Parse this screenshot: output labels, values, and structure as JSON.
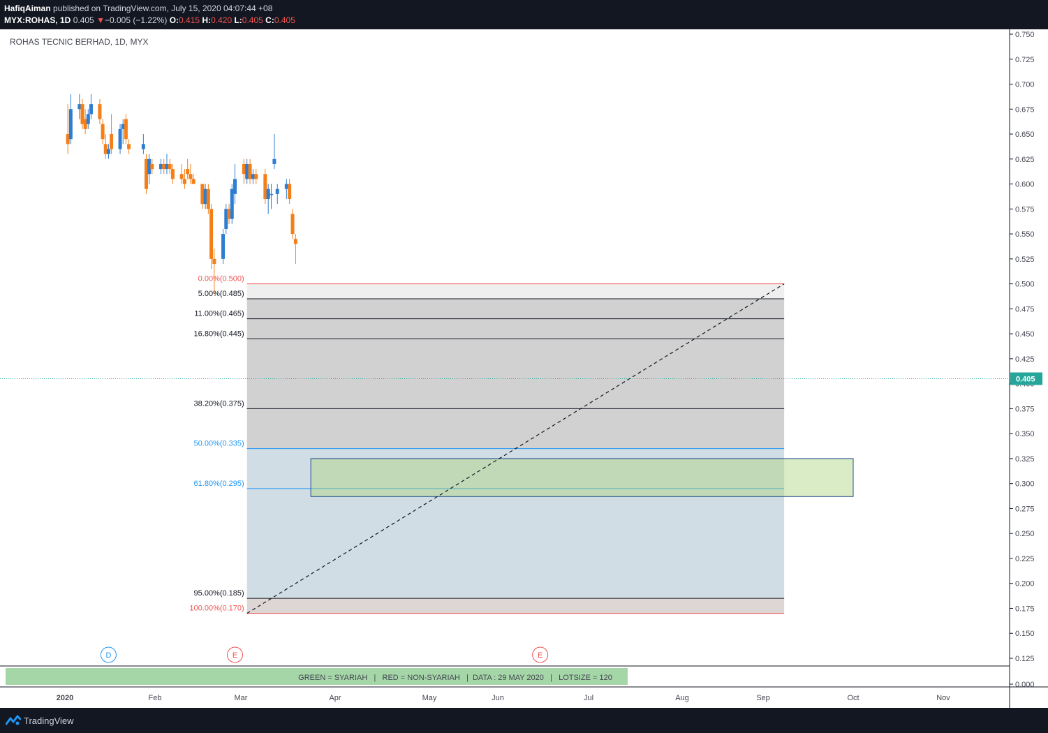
{
  "header": {
    "author": "HafiqAiman",
    "published_text": "published on TradingView.com, July 15, 2020 04:07:44 +08",
    "symbol": "MYX:ROHAS, 1D",
    "last": "0.405",
    "change_arrow": "▼",
    "change": "−0.005 (−1.22%)",
    "o_label": "O:",
    "o_value": "0.415",
    "h_label": "H:",
    "h_value": "0.420",
    "l_label": "L:",
    "l_value": "0.405",
    "c_label": "C:",
    "c_value": "0.405"
  },
  "legend_title": "ROHAS TECNIC BERHAD, 1D, MYX",
  "footer": {
    "brand": "TradingView",
    "logo_icon": "tradingview-logo-icon"
  },
  "colors": {
    "up": "#2e7dd1",
    "down": "#f57f17",
    "fib_red": "#ef5350",
    "fib_blue": "#2196f3",
    "accent": "#26a69a"
  },
  "chart_data": {
    "type": "candlestick",
    "title": "ROHAS TECNIC BERHAD, 1D, MYX",
    "y_ticks": [
      "0.750",
      "0.725",
      "0.700",
      "0.675",
      "0.650",
      "0.625",
      "0.600",
      "0.575",
      "0.550",
      "0.525",
      "0.500",
      "0.475",
      "0.450",
      "0.425",
      "0.400",
      "0.375",
      "0.350",
      "0.325",
      "0.300",
      "0.275",
      "0.250",
      "0.225",
      "0.200",
      "0.175",
      "0.150",
      "0.125",
      "0.000"
    ],
    "x_ticks": [
      "2020",
      "Feb",
      "Mar",
      "Apr",
      "May",
      "Jun",
      "Jul",
      "Aug",
      "Sep",
      "Oct",
      "Nov"
    ],
    "last_price_label": "0.405",
    "event_markers": [
      {
        "letter": "D",
        "kind": "dividend",
        "date": "2020-01-16"
      },
      {
        "letter": "E",
        "kind": "earnings",
        "date": "2020-02-28"
      },
      {
        "letter": "E",
        "kind": "earnings",
        "date": "2020-06-15"
      }
    ],
    "fib_levels": [
      {
        "label": "0.00%(0.500)",
        "price": 0.5,
        "color": "red"
      },
      {
        "label": "5.00%(0.485)",
        "price": 0.485,
        "color": "black"
      },
      {
        "label": "11.00%(0.465)",
        "price": 0.465,
        "color": "black"
      },
      {
        "label": "16.80%(0.445)",
        "price": 0.445,
        "color": "black"
      },
      {
        "label": "38.20%(0.375)",
        "price": 0.375,
        "color": "black"
      },
      {
        "label": "50.00%(0.335)",
        "price": 0.335,
        "color": "blue"
      },
      {
        "label": "61.80%(0.295)",
        "price": 0.295,
        "color": "blue"
      },
      {
        "label": "95.00%(0.185)",
        "price": 0.185,
        "color": "black"
      },
      {
        "label": "100.00%(0.170)",
        "price": 0.17,
        "color": "red"
      }
    ],
    "fib_range": {
      "start": "2020-03-03",
      "end": "2020-09-08"
    },
    "support_zone": {
      "top": 0.325,
      "bottom": 0.287,
      "start": "2020-03-24",
      "end": "2020-10-01"
    },
    "trendline": {
      "from": {
        "date": "2020-03-03",
        "price": 0.17
      },
      "to": {
        "date": "2020-09-08",
        "price": 0.5
      }
    },
    "banner_text": "GREEN = SYARIAH   |   RED = NON-SYARIAH   |  DATA : 29 MAY 2020   |   LOTSIZE = 120",
    "candles": [
      {
        "d": "2020-01-02",
        "o": 0.65,
        "h": 0.68,
        "l": 0.63,
        "c": 0.64
      },
      {
        "d": "2020-01-03",
        "o": 0.645,
        "h": 0.69,
        "l": 0.64,
        "c": 0.675
      },
      {
        "d": "2020-01-06",
        "o": 0.675,
        "h": 0.69,
        "l": 0.665,
        "c": 0.68
      },
      {
        "d": "2020-01-07",
        "o": 0.68,
        "h": 0.685,
        "l": 0.655,
        "c": 0.66
      },
      {
        "d": "2020-01-08",
        "o": 0.665,
        "h": 0.675,
        "l": 0.65,
        "c": 0.655
      },
      {
        "d": "2020-01-09",
        "o": 0.66,
        "h": 0.675,
        "l": 0.655,
        "c": 0.67
      },
      {
        "d": "2020-01-10",
        "o": 0.67,
        "h": 0.69,
        "l": 0.665,
        "c": 0.68
      },
      {
        "d": "2020-01-13",
        "o": 0.68,
        "h": 0.685,
        "l": 0.66,
        "c": 0.665
      },
      {
        "d": "2020-01-14",
        "o": 0.66,
        "h": 0.665,
        "l": 0.64,
        "c": 0.645
      },
      {
        "d": "2020-01-15",
        "o": 0.64,
        "h": 0.65,
        "l": 0.625,
        "c": 0.63
      },
      {
        "d": "2020-01-16",
        "o": 0.63,
        "h": 0.64,
        "l": 0.625,
        "c": 0.635
      },
      {
        "d": "2020-01-17",
        "o": 0.65,
        "h": 0.67,
        "l": 0.63,
        "c": 0.635
      },
      {
        "d": "2020-01-20",
        "o": 0.635,
        "h": 0.66,
        "l": 0.63,
        "c": 0.655
      },
      {
        "d": "2020-01-21",
        "o": 0.655,
        "h": 0.665,
        "l": 0.64,
        "c": 0.66
      },
      {
        "d": "2020-01-22",
        "o": 0.665,
        "h": 0.67,
        "l": 0.64,
        "c": 0.645
      },
      {
        "d": "2020-01-23",
        "o": 0.64,
        "h": 0.645,
        "l": 0.63,
        "c": 0.635
      },
      {
        "d": "2020-01-28",
        "o": 0.635,
        "h": 0.65,
        "l": 0.63,
        "c": 0.64
      },
      {
        "d": "2020-01-29",
        "o": 0.625,
        "h": 0.63,
        "l": 0.59,
        "c": 0.595
      },
      {
        "d": "2020-01-30",
        "o": 0.61,
        "h": 0.63,
        "l": 0.6,
        "c": 0.625
      },
      {
        "d": "2020-01-31",
        "o": 0.62,
        "h": 0.625,
        "l": 0.61,
        "c": 0.615
      },
      {
        "d": "2020-02-03",
        "o": 0.615,
        "h": 0.625,
        "l": 0.61,
        "c": 0.62
      },
      {
        "d": "2020-02-04",
        "o": 0.62,
        "h": 0.625,
        "l": 0.61,
        "c": 0.615
      },
      {
        "d": "2020-02-05",
        "o": 0.615,
        "h": 0.63,
        "l": 0.61,
        "c": 0.62
      },
      {
        "d": "2020-02-06",
        "o": 0.62,
        "h": 0.625,
        "l": 0.61,
        "c": 0.615
      },
      {
        "d": "2020-02-07",
        "o": 0.615,
        "h": 0.62,
        "l": 0.6,
        "c": 0.605
      },
      {
        "d": "2020-02-10",
        "o": 0.61,
        "h": 0.62,
        "l": 0.6,
        "c": 0.605
      },
      {
        "d": "2020-02-11",
        "o": 0.605,
        "h": 0.615,
        "l": 0.595,
        "c": 0.6
      },
      {
        "d": "2020-02-12",
        "o": 0.615,
        "h": 0.625,
        "l": 0.605,
        "c": 0.61
      },
      {
        "d": "2020-02-13",
        "o": 0.61,
        "h": 0.62,
        "l": 0.6,
        "c": 0.605
      },
      {
        "d": "2020-02-14",
        "o": 0.605,
        "h": 0.61,
        "l": 0.6,
        "c": 0.6
      },
      {
        "d": "2020-02-17",
        "o": 0.6,
        "h": 0.6,
        "l": 0.575,
        "c": 0.58
      },
      {
        "d": "2020-02-18",
        "o": 0.58,
        "h": 0.6,
        "l": 0.575,
        "c": 0.595
      },
      {
        "d": "2020-02-19",
        "o": 0.595,
        "h": 0.6,
        "l": 0.57,
        "c": 0.575
      },
      {
        "d": "2020-02-20",
        "o": 0.575,
        "h": 0.58,
        "l": 0.515,
        "c": 0.525
      },
      {
        "d": "2020-02-21",
        "o": 0.525,
        "h": 0.535,
        "l": 0.49,
        "c": 0.52
      },
      {
        "d": "2020-02-24",
        "o": 0.525,
        "h": 0.555,
        "l": 0.52,
        "c": 0.55
      },
      {
        "d": "2020-02-25",
        "o": 0.555,
        "h": 0.58,
        "l": 0.55,
        "c": 0.575
      },
      {
        "d": "2020-02-26",
        "o": 0.575,
        "h": 0.58,
        "l": 0.56,
        "c": 0.565
      },
      {
        "d": "2020-02-27",
        "o": 0.565,
        "h": 0.6,
        "l": 0.56,
        "c": 0.595
      },
      {
        "d": "2020-02-28",
        "o": 0.59,
        "h": 0.62,
        "l": 0.58,
        "c": 0.605
      },
      {
        "d": "2020-03-02",
        "o": 0.62,
        "h": 0.625,
        "l": 0.6,
        "c": 0.61
      },
      {
        "d": "2020-03-03",
        "o": 0.605,
        "h": 0.625,
        "l": 0.6,
        "c": 0.62
      },
      {
        "d": "2020-03-04",
        "o": 0.62,
        "h": 0.625,
        "l": 0.6,
        "c": 0.605
      },
      {
        "d": "2020-03-05",
        "o": 0.605,
        "h": 0.615,
        "l": 0.6,
        "c": 0.61
      },
      {
        "d": "2020-03-06",
        "o": 0.61,
        "h": 0.615,
        "l": 0.6,
        "c": 0.605
      },
      {
        "d": "2020-03-09",
        "o": 0.61,
        "h": 0.615,
        "l": 0.58,
        "c": 0.585
      },
      {
        "d": "2020-03-10",
        "o": 0.585,
        "h": 0.6,
        "l": 0.57,
        "c": 0.595
      },
      {
        "d": "2020-03-11",
        "o": 0.59,
        "h": 0.6,
        "l": 0.575,
        "c": 0.59
      },
      {
        "d": "2020-03-12",
        "o": 0.62,
        "h": 0.65,
        "l": 0.615,
        "c": 0.625
      },
      {
        "d": "2020-03-13",
        "o": 0.59,
        "h": 0.6,
        "l": 0.58,
        "c": 0.595
      },
      {
        "d": "2020-03-16",
        "o": 0.595,
        "h": 0.605,
        "l": 0.585,
        "c": 0.6
      },
      {
        "d": "2020-03-17",
        "o": 0.6,
        "h": 0.605,
        "l": 0.58,
        "c": 0.585
      },
      {
        "d": "2020-03-18",
        "o": 0.57,
        "h": 0.575,
        "l": 0.545,
        "c": 0.55
      },
      {
        "d": "2020-03-19",
        "o": 0.545,
        "h": 0.55,
        "l": 0.52,
        "c": 0.54
      }
    ]
  }
}
